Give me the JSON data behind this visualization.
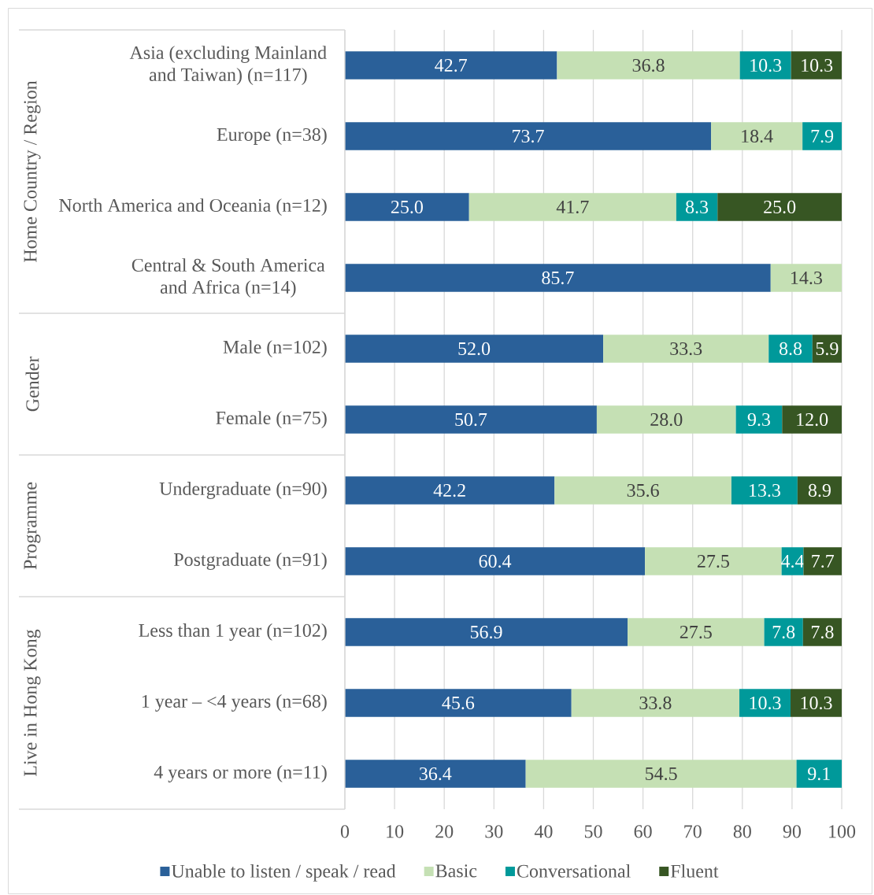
{
  "chart_data": {
    "type": "bar",
    "orientation": "horizontal",
    "stacked": true,
    "categories": [
      "Asia (excluding Mainland and Taiwan) (n=117)",
      "Europe (n=38)",
      "North America and Oceania (n=12)",
      "Central & South America and Africa (n=14)",
      "Male (n=102)",
      "Female (n=75)",
      "Undergraduate (n=90)",
      "Postgraduate (n=91)",
      "Less than 1 year (n=102)",
      "1 year – <4 years (n=68)",
      "4 years or more (n=11)"
    ],
    "series": [
      {
        "name": "Unable to  listen / speak / read",
        "color": "#2a6099",
        "values": [
          42.7,
          73.7,
          25.0,
          85.7,
          52.0,
          50.7,
          42.2,
          60.4,
          56.9,
          45.6,
          36.4
        ],
        "value_labels": [
          "42.7",
          "73.7",
          "25.0",
          "85.7",
          "52.0",
          "50.7",
          "42.2",
          "60.4",
          "56.9",
          "45.6",
          "36.4"
        ]
      },
      {
        "name": "Basic",
        "color": "#c5e0b4",
        "values": [
          36.8,
          18.4,
          41.7,
          14.3,
          33.3,
          28.0,
          35.6,
          27.5,
          27.5,
          33.8,
          54.5
        ],
        "value_labels": [
          "36.8",
          "18.4",
          "41.7",
          "14.3",
          "33.3",
          "28.0",
          "35.6",
          "27.5",
          "27.5",
          "33.8",
          "54.5"
        ]
      },
      {
        "name": "Conversational",
        "color": "#00999a",
        "values": [
          10.3,
          7.9,
          8.3,
          null,
          8.8,
          9.3,
          13.3,
          4.4,
          7.8,
          10.3,
          9.1
        ],
        "value_labels": [
          "10.3",
          "7.9",
          "8.3",
          null,
          "8.8",
          "9.3",
          "13.3",
          "4.4",
          "7.8",
          "10.3",
          "9.1"
        ]
      },
      {
        "name": "Fluent",
        "color": "#375623",
        "values": [
          10.3,
          null,
          25.0,
          null,
          5.9,
          12.0,
          8.9,
          7.7,
          7.8,
          10.3,
          null
        ],
        "value_labels": [
          "10.3",
          null,
          "25.0",
          null,
          "5.9",
          "12.0",
          "8.9",
          "7.7",
          "7.8",
          "10.3",
          null
        ]
      }
    ],
    "xlim": [
      0,
      100
    ],
    "xticks": [
      0,
      10,
      20,
      30,
      40,
      50,
      60,
      70,
      80,
      90,
      100
    ],
    "grid": "x",
    "legend": "bottom",
    "annotations": [
      "Home Country / Region",
      "Gender",
      "Programme",
      "Live in Hong Kong"
    ]
  }
}
